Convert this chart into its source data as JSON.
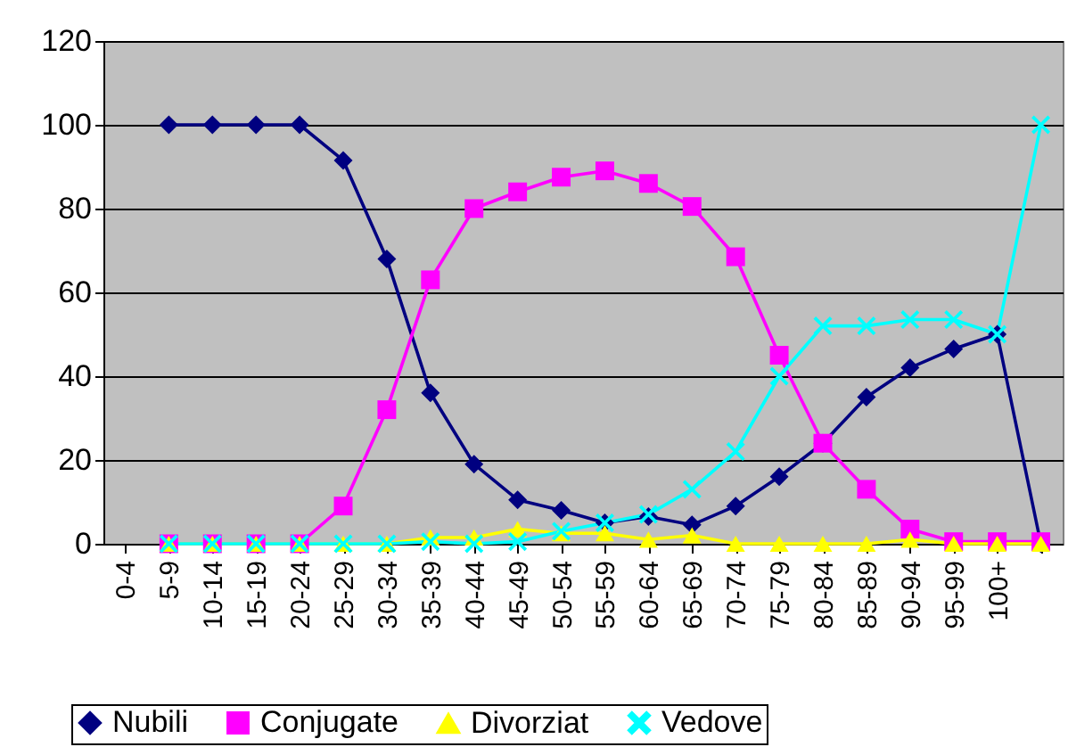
{
  "chart_data": {
    "type": "line",
    "categories": [
      "0-4",
      "5-9",
      "10-14",
      "15-19",
      "20-24",
      "25-29",
      "30-34",
      "35-39",
      "40-44",
      "45-49",
      "50-54",
      "55-59",
      "60-64",
      "65-69",
      "70-74",
      "75-79",
      "80-84",
      "85-89",
      "90-94",
      "95-99",
      "100+",
      null
    ],
    "series": [
      {
        "name": "Nubili",
        "color": "#000080",
        "marker": "diamond",
        "values": [
          null,
          100,
          100,
          100,
          100,
          91.5,
          68,
          36,
          19,
          10.5,
          8,
          5,
          6.5,
          4.5,
          9,
          16,
          24,
          35,
          42,
          46.5,
          50,
          0
        ]
      },
      {
        "name": "Conjugate",
        "color": "#ff00ff",
        "marker": "square",
        "values": [
          null,
          0,
          0,
          0,
          0,
          9,
          32,
          63,
          80,
          84,
          87.5,
          89,
          86,
          80.5,
          68.5,
          45,
          24,
          13,
          3.5,
          0.5,
          0.5,
          0.5
        ]
      },
      {
        "name": "Divorziat",
        "color": "#ffff00",
        "marker": "triangle",
        "values": [
          null,
          0,
          0,
          0,
          0,
          0,
          0,
          1.5,
          1.5,
          3.5,
          2.5,
          2.5,
          1,
          2,
          0,
          0,
          0,
          0,
          1,
          0,
          0,
          0
        ]
      },
      {
        "name": "Vedove",
        "color": "#00ffff",
        "marker": "cross",
        "values": [
          null,
          0,
          0,
          0,
          0,
          0,
          0,
          0.5,
          0,
          0.5,
          3,
          5,
          7,
          13,
          22,
          40,
          52,
          52,
          53.5,
          53.5,
          50,
          100
        ]
      }
    ],
    "ylim": [
      0,
      120
    ],
    "yticks": [
      0,
      20,
      40,
      60,
      80,
      100,
      120
    ],
    "grid": "y",
    "legend": "bottom"
  }
}
